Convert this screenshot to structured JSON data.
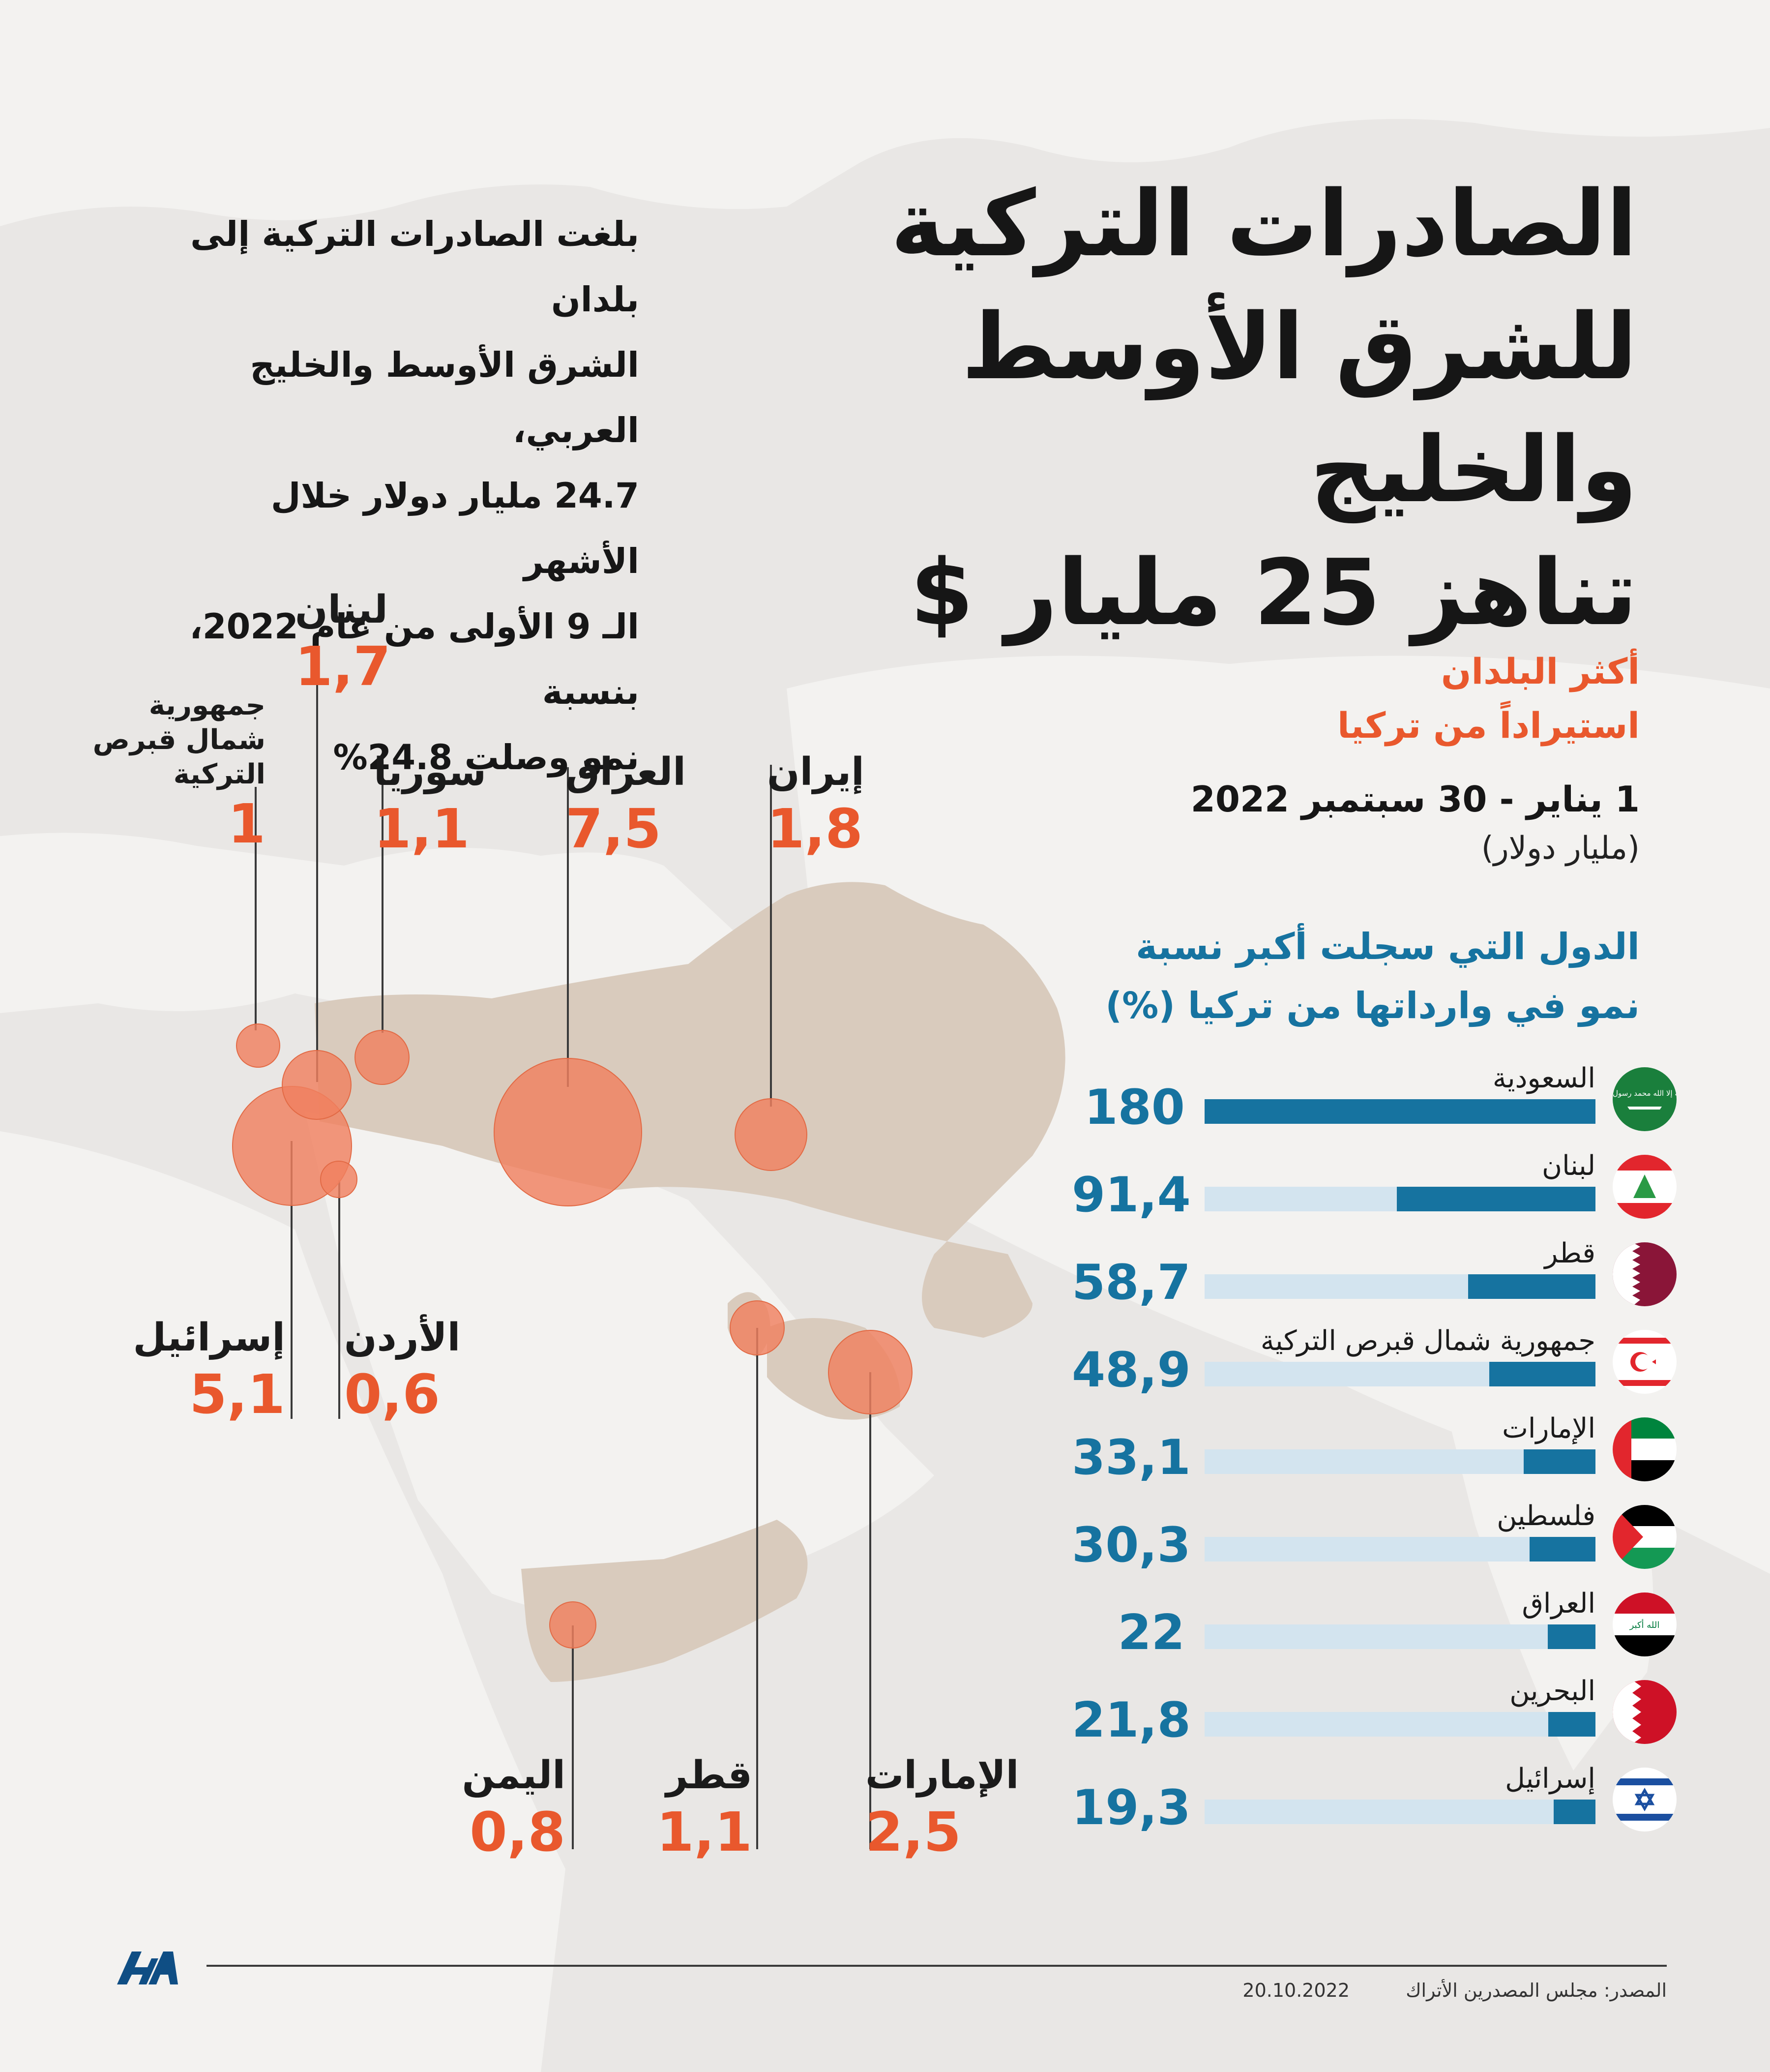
{
  "title_lines": [
    "الصادرات التركية",
    "للشرق الأوسط والخليج",
    "تناهز 25 مليار $"
  ],
  "intro_lines": [
    "بلغت الصادرات التركية إلى بلدان",
    "الشرق الأوسط والخليج العربي،",
    "24.7 مليار دولار خلال الأشهر",
    "الـ 9 الأولى من عام 2022، بنسبة",
    "نمو وصلت 24.8%"
  ],
  "legend": {
    "top_title_1": "أكثر البلدان",
    "top_title_2": "استيراداً من تركيا",
    "period": "1 يناير - 30 سبتمبر 2022",
    "unit": "(مليار دولار)",
    "growth_title_1": "الدول التي سجلت أكبر نسبة",
    "growth_title_2": "نمو في وارداتها من تركيا (%)"
  },
  "map_labels": {
    "cyprus_1": "جمهورية",
    "cyprus_2": "شمال قبرص",
    "cyprus_3": "التركية",
    "cyprus_val": "1",
    "lebanon": "لبنان",
    "lebanon_val": "1,7",
    "syria": "سوريا",
    "syria_val": "1,1",
    "iraq": "العراق",
    "iraq_val": "7,5",
    "iran": "إيران",
    "iran_val": "1,8",
    "israel": "إسرائيل",
    "israel_val": "5,1",
    "jordan": "الأردن",
    "jordan_val": "0,6",
    "yemen": "اليمن",
    "yemen_val": "0,8",
    "qatar": "قطر",
    "qatar_val": "1,1",
    "uae": "الإمارات",
    "uae_val": "2,5"
  },
  "chart_data": [
    {
      "type": "scatter",
      "title": "أكثر البلدان استيراداً من تركيا",
      "subtitle": "1 يناير - 30 سبتمبر 2022",
      "unit": "مليار دولار",
      "points": [
        {
          "country": "جمهورية شمال قبرص التركية",
          "value": 1.0
        },
        {
          "country": "لبنان",
          "value": 1.7
        },
        {
          "country": "سوريا",
          "value": 1.1
        },
        {
          "country": "العراق",
          "value": 7.5
        },
        {
          "country": "إيران",
          "value": 1.8
        },
        {
          "country": "إسرائيل",
          "value": 5.1
        },
        {
          "country": "الأردن",
          "value": 0.6
        },
        {
          "country": "اليمن",
          "value": 0.8
        },
        {
          "country": "قطر",
          "value": 1.1
        },
        {
          "country": "الإمارات",
          "value": 2.5
        }
      ]
    },
    {
      "type": "bar",
      "title": "الدول التي سجلت أكبر نسبة نمو في وارداتها من تركيا (%)",
      "categories": [
        "السعودية",
        "لبنان",
        "قطر",
        "جمهورية شمال قبرص التركية",
        "الإمارات",
        "فلسطين",
        "العراق",
        "البحرين",
        "إسرائيل"
      ],
      "values": [
        180,
        91.4,
        58.7,
        48.9,
        33.1,
        30.3,
        22,
        21.8,
        19.3
      ],
      "value_labels": [
        "180",
        "91,4",
        "58,7",
        "48,9",
        "33,1",
        "30,3",
        "22",
        "21,8",
        "19,3"
      ],
      "xlim": [
        0,
        180
      ]
    }
  ],
  "flags": {
    "saudi_text": "لا إله إلا الله محمد رسول الله",
    "iraq_text": "الله أكبر"
  },
  "footer": {
    "source": "المصدر: مجلس المصدرين الأتراك",
    "date": "20.10.2022",
    "logo": "AA"
  },
  "colors": {
    "accent_orange": "#e9582d",
    "bar_blue": "#1673a0",
    "bar_track": "#d3e4ef",
    "bubble": "#f0805f",
    "region": "#d9cbbd"
  }
}
